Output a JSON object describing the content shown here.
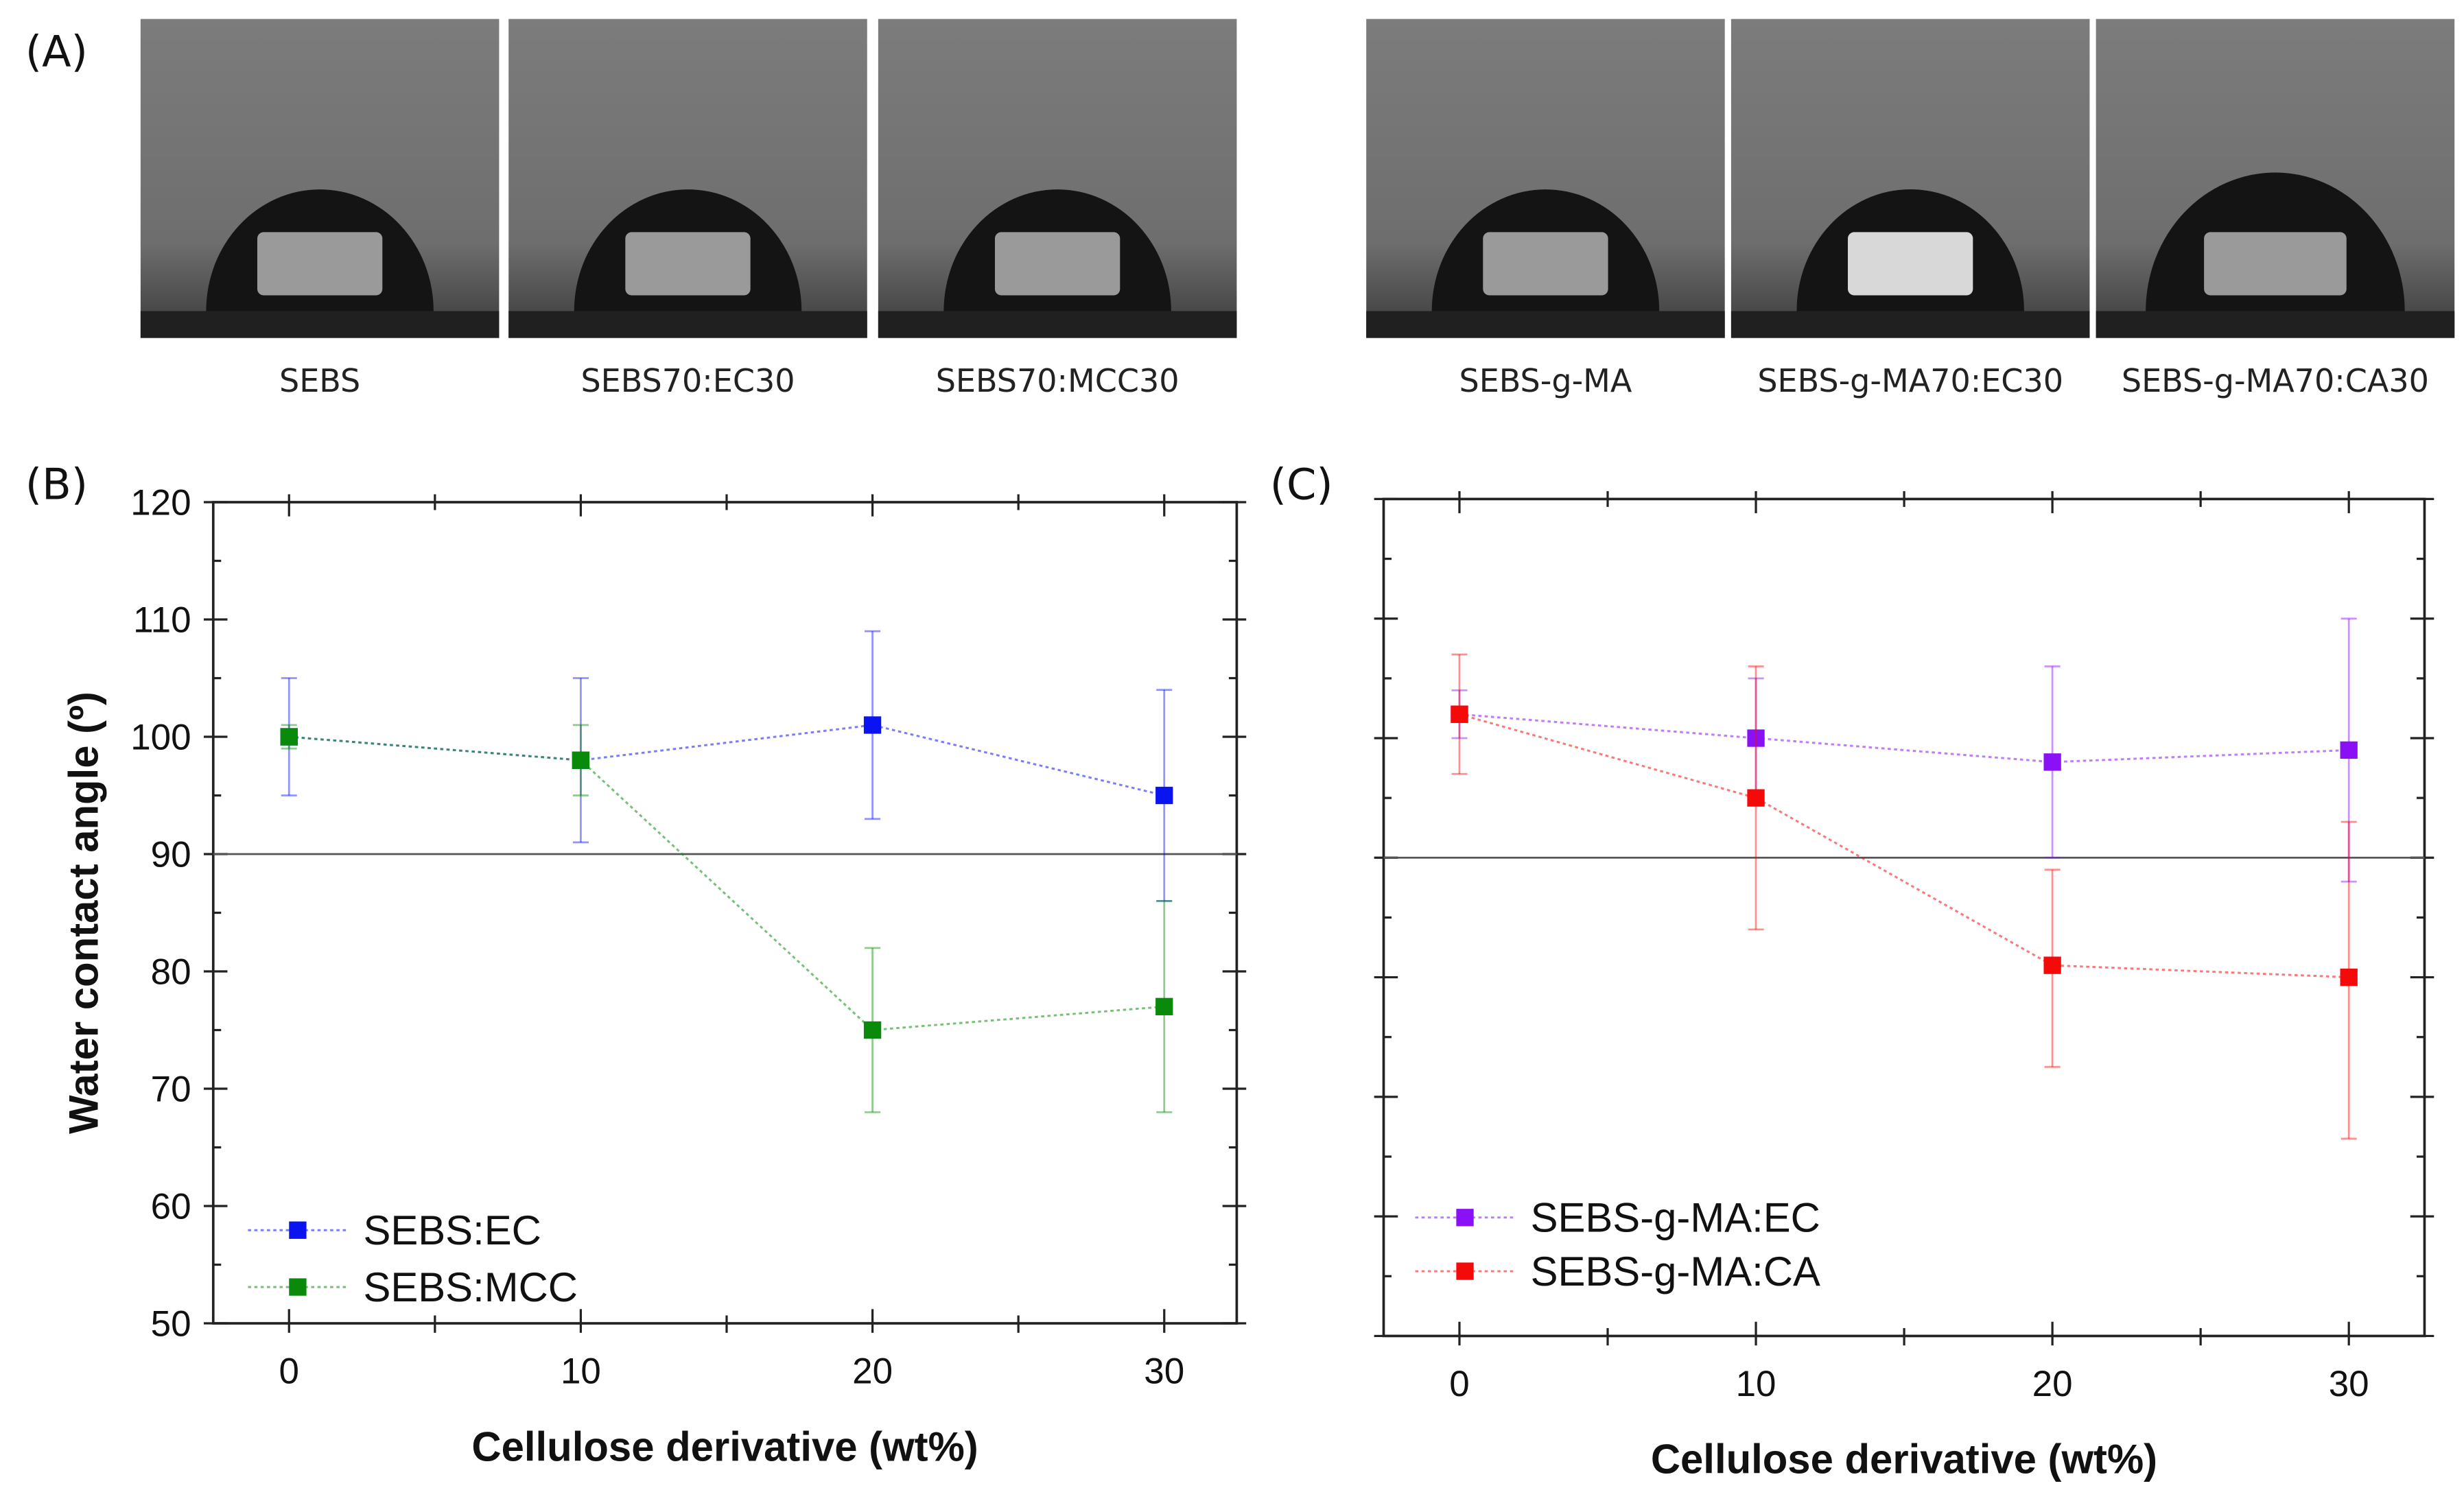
{
  "panels": {
    "a": "(A)",
    "b": "(B)",
    "c": "(C)"
  },
  "photos": [
    {
      "label": "SEBS"
    },
    {
      "label": "SEBS70:EC30"
    },
    {
      "label": "SEBS70:MCC30"
    },
    {
      "label": "SEBS-g-MA"
    },
    {
      "label": "SEBS-g-MA70:EC30"
    },
    {
      "label": "SEBS-g-MA70:CA30"
    }
  ],
  "chart_data": [
    {
      "type": "scatter",
      "panel": "B",
      "xlabel": "Cellulose derivative (wt%)",
      "ylabel": "Water contact angle (º)",
      "xlim": [
        -3,
        32.5
      ],
      "ylim": [
        50,
        120
      ],
      "xticks": [
        "0",
        "10",
        "20",
        "30"
      ],
      "yticks": [
        "50",
        "60",
        "70",
        "80",
        "90",
        "100",
        "110",
        "120"
      ],
      "reference_line": 90,
      "legend_placement": "bottom-left",
      "series": [
        {
          "name": "SEBS:EC",
          "color": "#0a14f0",
          "x": [
            0,
            10,
            20,
            30
          ],
          "y": [
            100,
            98,
            101,
            95
          ],
          "err_low": [
            95,
            91,
            93,
            86
          ],
          "err_high": [
            105,
            105,
            109,
            104
          ]
        },
        {
          "name": "SEBS:MCC",
          "color": "#0a8a0a",
          "x": [
            0,
            10,
            20,
            30
          ],
          "y": [
            100,
            98,
            75,
            77
          ],
          "err_low": [
            99,
            95,
            68,
            68
          ],
          "err_high": [
            101,
            101,
            82,
            86
          ]
        }
      ]
    },
    {
      "type": "scatter",
      "panel": "C",
      "xlabel": "Cellulose derivative (wt%)",
      "ylabel": "",
      "xlim": [
        -3,
        32.5
      ],
      "ylim": [
        50,
        120
      ],
      "xticks": [
        "0",
        "10",
        "20",
        "30"
      ],
      "yticks": [],
      "reference_line": 90,
      "legend_placement": "bottom-left",
      "series": [
        {
          "name": "SEBS-g-MA:EC",
          "color": "#8a10f5",
          "x": [
            0,
            10,
            20,
            30
          ],
          "y": [
            102,
            100,
            98,
            99
          ],
          "err_low": [
            100,
            95,
            90,
            88
          ],
          "err_high": [
            104,
            105,
            106,
            110
          ]
        },
        {
          "name": "SEBS-g-MA:CA",
          "color": "#f50a0a",
          "x": [
            0,
            10,
            20,
            30
          ],
          "y": [
            102,
            95,
            81,
            80
          ],
          "err_low": [
            97,
            84,
            72.5,
            66.5
          ],
          "err_high": [
            107,
            106,
            89,
            93
          ]
        }
      ]
    }
  ]
}
